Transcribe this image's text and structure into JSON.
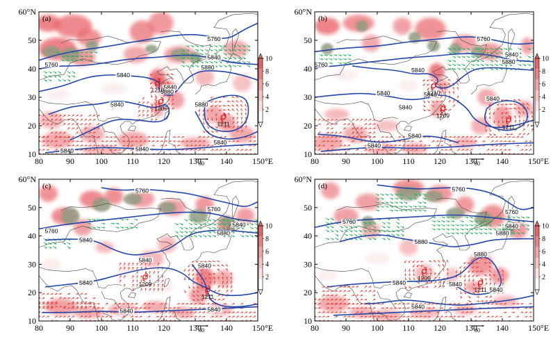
{
  "chart_data": {
    "type": "map-panels",
    "xlim": [
      80,
      150
    ],
    "ylim": [
      10,
      60
    ],
    "x_ticks": [
      "80",
      "90",
      "100",
      "110",
      "120",
      "130",
      "140",
      "150°E"
    ],
    "y_ticks": [
      "10",
      "20",
      "30",
      "40",
      "50",
      "60°N"
    ],
    "colorbar": {
      "ticks": [
        "2",
        "4",
        "6",
        "8",
        "10"
      ],
      "range": [
        0,
        10
      ]
    },
    "reference_vector": {
      "label": "80"
    },
    "colors": {
      "shading": "#e8646a",
      "shading_light": "#f6c6c6",
      "contour": "#2346a8",
      "vector_red": "#e43b2f",
      "vector_green": "#25b05a",
      "coast": "#444444",
      "green_patch": "#8f9a80"
    },
    "panels": [
      {
        "label": "(a)",
        "contours": [
          {
            "label": "5760",
            "lon": 136,
            "lat": 50.5
          },
          {
            "label": "5760",
            "lon": 84,
            "lat": 41.5
          },
          {
            "label": "5840",
            "lon": 136,
            "lat": 44
          },
          {
            "label": "5880",
            "lon": 134,
            "lat": 40.5
          },
          {
            "label": "5840",
            "lon": 107,
            "lat": 37.8
          },
          {
            "label": "5840",
            "lon": 122,
            "lat": 33.5
          },
          {
            "label": "5880",
            "lon": 121,
            "lat": 32
          },
          {
            "label": "5840",
            "lon": 105,
            "lat": 27.5
          },
          {
            "label": "5880",
            "lon": 132,
            "lat": 27.5
          },
          {
            "label": "5840",
            "lon": 138,
            "lat": 14.2
          },
          {
            "label": "5840",
            "lon": 89,
            "lat": 11.2
          },
          {
            "label": "5840",
            "lon": 113,
            "lat": 11.8
          }
        ],
        "typhoons": [
          {
            "id": "1210",
            "lon": 118,
            "lat": 35
          },
          {
            "id": "1209",
            "lon": 119,
            "lat": 28.5
          },
          {
            "id": "1211",
            "lon": 139,
            "lat": 23
          }
        ]
      },
      {
        "label": "(b)",
        "contours": [
          {
            "label": "5760",
            "lon": 134,
            "lat": 50.5
          },
          {
            "label": "5760",
            "lon": 82,
            "lat": 41.5
          },
          {
            "label": "5840",
            "lon": 143,
            "lat": 45
          },
          {
            "label": "5880",
            "lon": 142,
            "lat": 42.5
          },
          {
            "label": "5840",
            "lon": 113,
            "lat": 39.5
          },
          {
            "label": "5840",
            "lon": 102,
            "lat": 31.5
          },
          {
            "label": "5840",
            "lon": 117,
            "lat": 31
          },
          {
            "label": "5840",
            "lon": 109,
            "lat": 26.5
          },
          {
            "label": "5840",
            "lon": 137,
            "lat": 29.5
          },
          {
            "label": "5840",
            "lon": 112,
            "lat": 16.5
          },
          {
            "label": "5840",
            "lon": 99,
            "lat": 13
          }
        ],
        "typhoons": [
          {
            "id": "1210",
            "lon": 118,
            "lat": 34
          },
          {
            "id": "1209",
            "lon": 121,
            "lat": 26
          },
          {
            "id": "1211",
            "lon": 142,
            "lat": 22
          }
        ]
      },
      {
        "label": "(c)",
        "contours": [
          {
            "label": "5760",
            "lon": 113,
            "lat": 56
          },
          {
            "label": "5760",
            "lon": 136,
            "lat": 49.5
          },
          {
            "label": "5760",
            "lon": 84,
            "lat": 41.8
          },
          {
            "label": "5840",
            "lon": 144,
            "lat": 44
          },
          {
            "label": "5880",
            "lon": 139,
            "lat": 41
          },
          {
            "label": "5840",
            "lon": 95,
            "lat": 38.5
          },
          {
            "label": "5840",
            "lon": 114,
            "lat": 31.5
          },
          {
            "label": "5840",
            "lon": 95,
            "lat": 23.5
          },
          {
            "label": "5840",
            "lon": 133,
            "lat": 29.5
          },
          {
            "label": "5840",
            "lon": 108,
            "lat": 13.5
          },
          {
            "label": "5840",
            "lon": 136,
            "lat": 14
          }
        ],
        "typhoons": [
          {
            "id": "1209",
            "lon": 114,
            "lat": 25.5
          },
          {
            "id": "1211",
            "lon": 134,
            "lat": 21
          }
        ]
      },
      {
        "label": "(d)",
        "contours": [
          {
            "label": "5760",
            "lon": 126,
            "lat": 56.5
          },
          {
            "label": "5760",
            "lon": 143,
            "lat": 48.5
          },
          {
            "label": "5760",
            "lon": 91,
            "lat": 45
          },
          {
            "label": "5840",
            "lon": 143,
            "lat": 43.5
          },
          {
            "label": "5880",
            "lon": 140,
            "lat": 41
          },
          {
            "label": "5880",
            "lon": 114,
            "lat": 38
          },
          {
            "label": "5880",
            "lon": 133,
            "lat": 33.5
          },
          {
            "label": "5840",
            "lon": 107,
            "lat": 23.5
          },
          {
            "label": "5840",
            "lon": 125,
            "lat": 23
          },
          {
            "label": "5840",
            "lon": 138,
            "lat": 21
          },
          {
            "label": "5840",
            "lon": 113,
            "lat": 15
          }
        ],
        "typhoons": [
          {
            "id": "1209",
            "lon": 115,
            "lat": 27.5
          },
          {
            "id": "1211",
            "lon": 133,
            "lat": 23.5
          }
        ]
      }
    ]
  }
}
